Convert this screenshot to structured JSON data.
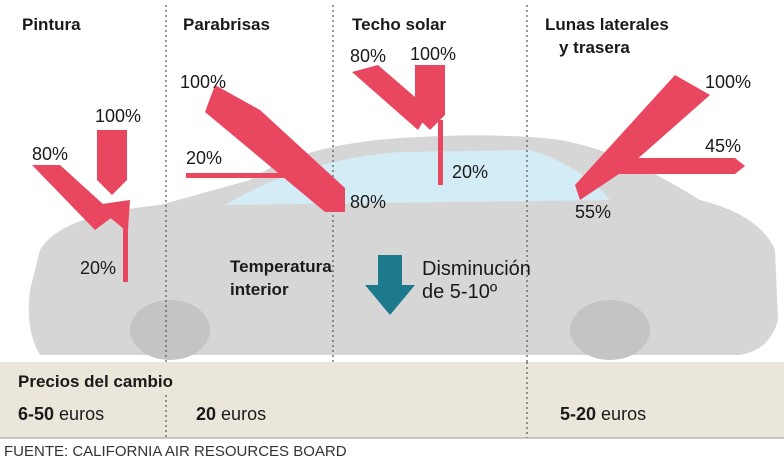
{
  "sections": [
    {
      "title": [
        "Pintura"
      ],
      "labels": [
        "100%",
        "80%",
        "20%"
      ]
    },
    {
      "title": [
        "Parabrisas"
      ],
      "labels": [
        "100%",
        "20%",
        "80%"
      ]
    },
    {
      "title": [
        "Techo solar"
      ],
      "labels": [
        "80%",
        "100%",
        "20%"
      ]
    },
    {
      "title": [
        "Lunas laterales",
        "y trasera"
      ],
      "labels": [
        "100%",
        "45%",
        "55%"
      ]
    }
  ],
  "center": {
    "label": [
      "Temperatura",
      "interior"
    ],
    "change": [
      "Disminución",
      "de 5-10º"
    ]
  },
  "prices": {
    "title": "Precios del cambio",
    "items": [
      {
        "amount": "6-50",
        "unit": "euros"
      },
      {
        "amount": "20",
        "unit": "euros"
      },
      {
        "amount": "5-20",
        "unit": "euros"
      }
    ]
  },
  "source": "FUENTE: CALIFORNIA AIR RESOURCES BOARD"
}
